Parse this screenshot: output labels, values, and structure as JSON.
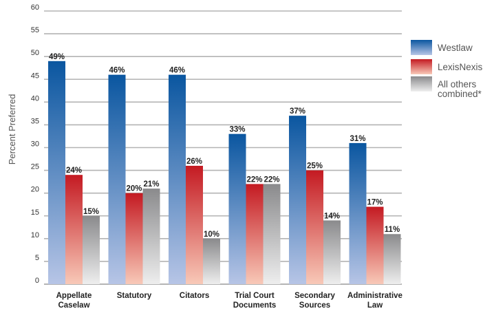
{
  "chart_data": {
    "type": "bar",
    "title": "",
    "xlabel": "",
    "ylabel": "Percent Preferred",
    "ylim": [
      0,
      60
    ],
    "yticks": [
      0,
      5,
      10,
      15,
      20,
      25,
      30,
      35,
      40,
      45,
      50,
      55,
      60
    ],
    "grid": true,
    "legend_position": "right",
    "categories": [
      [
        "Appellate",
        "Caselaw"
      ],
      [
        "Statutory"
      ],
      [
        "Citators"
      ],
      [
        "Trial Court",
        "Documents"
      ],
      [
        "Secondary",
        "Sources"
      ],
      [
        "Administrative",
        "Law"
      ]
    ],
    "series": [
      {
        "name": "Westlaw",
        "values": [
          49,
          46,
          46,
          33,
          37,
          31
        ],
        "labels": [
          "49%",
          "46%",
          "46%",
          "33%",
          "37%",
          "31%"
        ],
        "color_top": "#0a56a0",
        "color_bottom": "#b7c5e6"
      },
      {
        "name": "LexisNexis",
        "values": [
          24,
          20,
          26,
          22,
          25,
          17
        ],
        "labels": [
          "24%",
          "20%",
          "26%",
          "22%",
          "25%",
          "17%"
        ],
        "color_top": "#c41a22",
        "color_bottom": "#f8c9b8"
      },
      {
        "name": "All others combined*",
        "values": [
          15,
          21,
          10,
          22,
          14,
          11
        ],
        "labels": [
          "15%",
          "21%",
          "10%",
          "22%",
          "14%",
          "11%"
        ],
        "color_top": "#8a8a8c",
        "color_bottom": "#eeeeee"
      }
    ],
    "legend_lines": [
      [
        "Westlaw"
      ],
      [
        "LexisNexis"
      ],
      [
        "All others",
        "combined*"
      ]
    ]
  }
}
